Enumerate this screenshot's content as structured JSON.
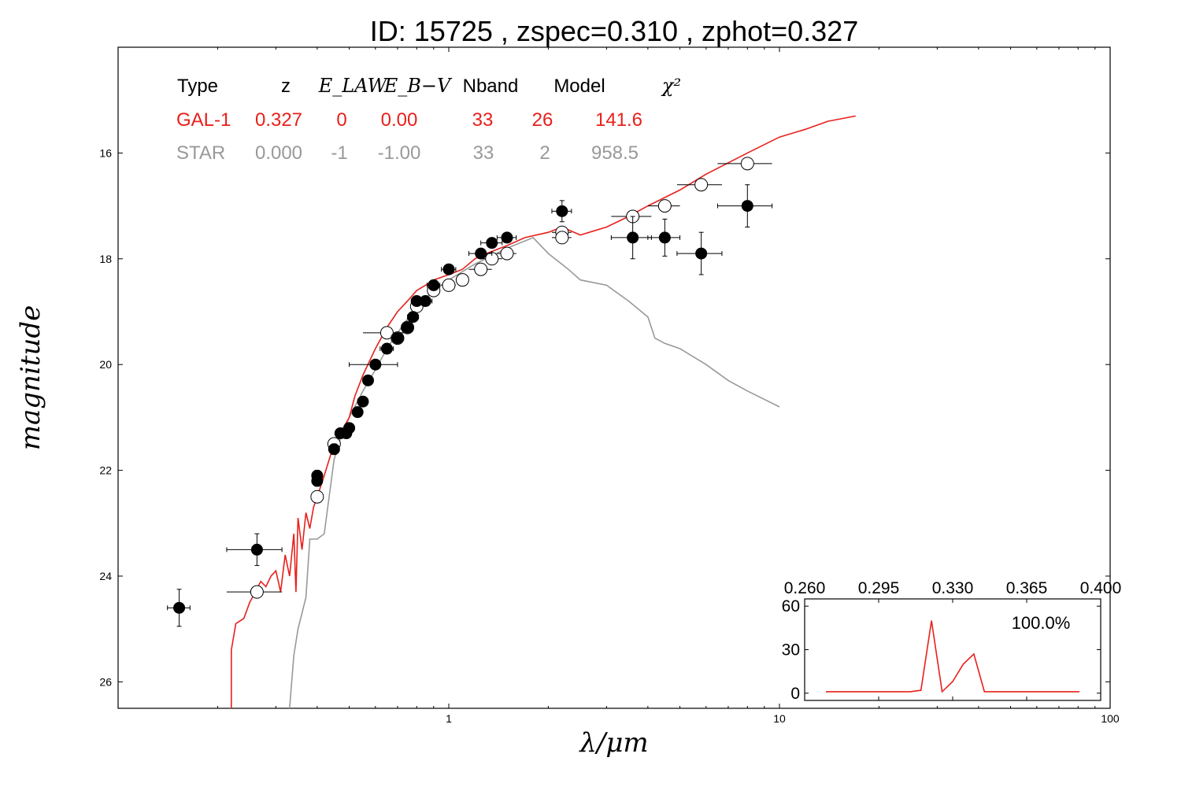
{
  "chart_data": {
    "type": "scatter",
    "title": "ID:  15725 , zspec=0.310 , zphot=0.327",
    "xlabel": "λ/μm",
    "ylabel": "magnitude",
    "xscale": "log",
    "xlim": [
      0.1,
      100
    ],
    "ylim": [
      26.5,
      14
    ],
    "x_ticks": [
      "1",
      "10",
      "100"
    ],
    "y_ticks": [
      "16",
      "18",
      "20",
      "22",
      "24",
      "26"
    ],
    "grid": false,
    "legend_table": {
      "headers": [
        "Type",
        "z",
        "E_LAW",
        "E_B−V",
        "Nband",
        "Model",
        "χ²"
      ],
      "rows": [
        {
          "name": "GAL-1",
          "color": "#e8201c",
          "values": [
            "GAL-1",
            "0.327",
            "0",
            "0.00",
            "33",
            "26",
            "141.6"
          ]
        },
        {
          "name": "STAR",
          "color": "#999999",
          "values": [
            "STAR",
            "0.000",
            "-1",
            "-1.00",
            "33",
            "2",
            "958.5"
          ]
        }
      ]
    },
    "series": [
      {
        "name": "GAL-1",
        "kind": "line",
        "color": "#e8201c",
        "x": [
          0.22,
          0.22,
          0.227,
          0.24,
          0.25,
          0.26,
          0.27,
          0.28,
          0.29,
          0.3,
          0.31,
          0.32,
          0.33,
          0.34,
          0.345,
          0.35,
          0.36,
          0.37,
          0.38,
          0.39,
          0.4,
          0.41,
          0.42,
          0.45,
          0.48,
          0.5,
          0.52,
          0.55,
          0.6,
          0.65,
          0.7,
          0.75,
          0.8,
          0.85,
          0.9,
          1.0,
          1.1,
          1.2,
          1.3,
          1.5,
          1.7,
          2.0,
          2.2,
          2.5,
          3.0,
          3.5,
          4.0,
          5.0,
          6.0,
          8.0,
          10.0,
          12.0,
          14.0,
          17.0
        ],
        "y": [
          26.5,
          25.4,
          24.9,
          24.8,
          24.5,
          24.3,
          24.1,
          24.2,
          24.0,
          23.9,
          24.3,
          23.6,
          24.0,
          23.2,
          24.3,
          22.9,
          23.5,
          22.8,
          23.1,
          22.7,
          22.5,
          22.3,
          22.1,
          21.5,
          21.2,
          21.0,
          20.6,
          20.2,
          19.7,
          19.3,
          19.0,
          18.8,
          18.6,
          18.5,
          18.4,
          18.3,
          18.2,
          18.0,
          17.9,
          17.75,
          17.6,
          17.5,
          17.4,
          17.55,
          17.4,
          17.2,
          17.0,
          16.7,
          16.4,
          16.0,
          15.7,
          15.55,
          15.4,
          15.3
        ]
      },
      {
        "name": "STAR",
        "kind": "line",
        "color": "#999999",
        "x": [
          0.33,
          0.34,
          0.35,
          0.36,
          0.37,
          0.38,
          0.39,
          0.4,
          0.42,
          0.45,
          0.47,
          0.5,
          0.55,
          0.6,
          0.65,
          0.7,
          0.8,
          0.9,
          1.0,
          1.2,
          1.5,
          1.8,
          2.0,
          2.3,
          2.5,
          3.0,
          3.5,
          4.0,
          4.2,
          4.5,
          5.0,
          6.0,
          7.0,
          8.0,
          10.0
        ],
        "y": [
          26.5,
          25.5,
          25.0,
          24.7,
          24.4,
          23.3,
          23.3,
          23.3,
          23.2,
          21.8,
          21.4,
          21.0,
          20.5,
          20.1,
          19.7,
          19.4,
          18.9,
          18.6,
          18.4,
          18.1,
          17.8,
          17.6,
          17.9,
          18.2,
          18.4,
          18.5,
          18.8,
          19.1,
          19.5,
          19.6,
          19.7,
          20.0,
          20.3,
          20.5,
          20.8
        ]
      },
      {
        "name": "observed",
        "kind": "points",
        "marker": "filled",
        "x": [
          0.153,
          0.263,
          0.4,
          0.4,
          0.45,
          0.47,
          0.49,
          0.5,
          0.53,
          0.55,
          0.57,
          0.6,
          0.65,
          0.7,
          0.75,
          0.78,
          0.8,
          0.85,
          0.9,
          1.0,
          1.25,
          1.35,
          1.5,
          2.2,
          3.6,
          4.5,
          5.8,
          8.0
        ],
        "y": [
          24.6,
          23.5,
          22.1,
          22.2,
          21.6,
          21.3,
          21.3,
          21.2,
          20.9,
          20.7,
          20.3,
          20.0,
          19.7,
          19.5,
          19.3,
          19.1,
          18.8,
          18.8,
          18.5,
          18.2,
          17.9,
          17.7,
          17.6,
          17.1,
          17.6,
          17.6,
          17.9,
          17.0
        ],
        "yerr": [
          0.35,
          0.3,
          0.1,
          0.1,
          0.1,
          0.08,
          0.08,
          0.08,
          0.08,
          0.08,
          0.06,
          0.06,
          0.06,
          0.06,
          0.06,
          0.06,
          0.06,
          0.06,
          0.05,
          0.05,
          0.05,
          0.05,
          0.05,
          0.2,
          0.4,
          0.35,
          0.4,
          0.4
        ],
        "xerr": [
          0.012,
          0.05,
          0.012,
          0.012,
          0.015,
          0.015,
          0.015,
          0.015,
          0.015,
          0.015,
          0.015,
          0.1,
          0.03,
          0.03,
          0.03,
          0.03,
          0.03,
          0.04,
          0.04,
          0.05,
          0.1,
          0.1,
          0.1,
          0.15,
          0.5,
          0.5,
          0.9,
          1.5
        ]
      },
      {
        "name": "model",
        "kind": "points",
        "marker": "open",
        "x": [
          0.263,
          0.4,
          0.45,
          0.65,
          0.7,
          0.75,
          0.8,
          0.9,
          1.0,
          1.1,
          1.25,
          1.35,
          1.5,
          2.2,
          2.2,
          3.6,
          4.5,
          5.8,
          8.0
        ],
        "y": [
          24.3,
          22.5,
          21.5,
          19.4,
          19.5,
          19.3,
          18.9,
          18.6,
          18.5,
          18.4,
          18.2,
          18.0,
          17.9,
          17.5,
          17.6,
          17.2,
          17.0,
          16.6,
          16.2
        ],
        "xerr": [
          0.05,
          0.012,
          0.015,
          0.1,
          0.03,
          0.03,
          0.03,
          0.04,
          0.05,
          0.05,
          0.1,
          0.1,
          0.1,
          0.15,
          0.15,
          0.5,
          0.5,
          0.9,
          1.5
        ]
      }
    ],
    "inset": {
      "type": "line",
      "xlim": [
        0.26,
        0.4
      ],
      "ylim": [
        -5,
        65
      ],
      "x_ticks": [
        "0.260",
        "0.295",
        "0.330",
        "0.365",
        "0.400"
      ],
      "y_ticks": [
        "0",
        "30",
        "60"
      ],
      "annotation": "100.0%",
      "color": "#e8201c",
      "x": [
        0.27,
        0.305,
        0.31,
        0.315,
        0.32,
        0.325,
        0.33,
        0.335,
        0.34,
        0.345,
        0.35,
        0.355,
        0.37,
        0.39
      ],
      "y": [
        1,
        1,
        1,
        2,
        50,
        1,
        8,
        20,
        27,
        1,
        1,
        1,
        1,
        1
      ]
    }
  }
}
